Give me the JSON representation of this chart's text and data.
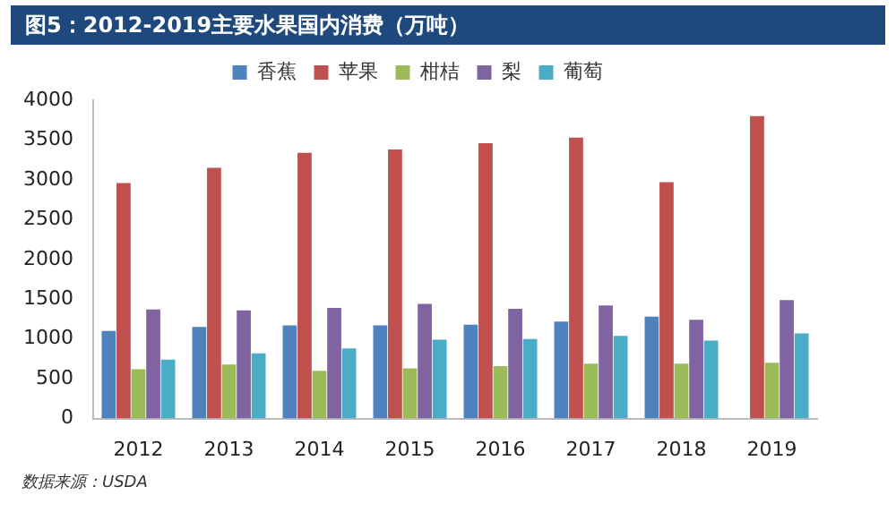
{
  "chart_data": {
    "type": "bar",
    "title": "图5：2012-2019主要水果国内消费（万吨）",
    "categories": [
      "2012",
      "2013",
      "2014",
      "2015",
      "2016",
      "2017",
      "2018",
      "2019"
    ],
    "series": [
      {
        "name": "香蕉",
        "color": "#4f81bd",
        "values": [
          1100,
          1150,
          1170,
          1170,
          1180,
          1220,
          1280,
          null
        ]
      },
      {
        "name": "苹果",
        "color": "#c0504d",
        "values": [
          2960,
          3150,
          3340,
          3380,
          3460,
          3530,
          2970,
          3800
        ]
      },
      {
        "name": "柑桔",
        "color": "#9bbb59",
        "values": [
          620,
          680,
          600,
          630,
          660,
          690,
          690,
          700
        ]
      },
      {
        "name": "梨",
        "color": "#8064a2",
        "values": [
          1370,
          1360,
          1390,
          1440,
          1380,
          1420,
          1240,
          1490
        ]
      },
      {
        "name": "葡萄",
        "color": "#4bacc6",
        "values": [
          740,
          820,
          880,
          990,
          1000,
          1040,
          980,
          1070
        ]
      }
    ],
    "ylim": [
      0,
      4000
    ],
    "yticks": [
      0,
      500,
      1000,
      1500,
      2000,
      2500,
      3000,
      3500,
      4000
    ],
    "grid": false,
    "legend": "top",
    "annotations": [
      "数据来源：USDA"
    ]
  }
}
